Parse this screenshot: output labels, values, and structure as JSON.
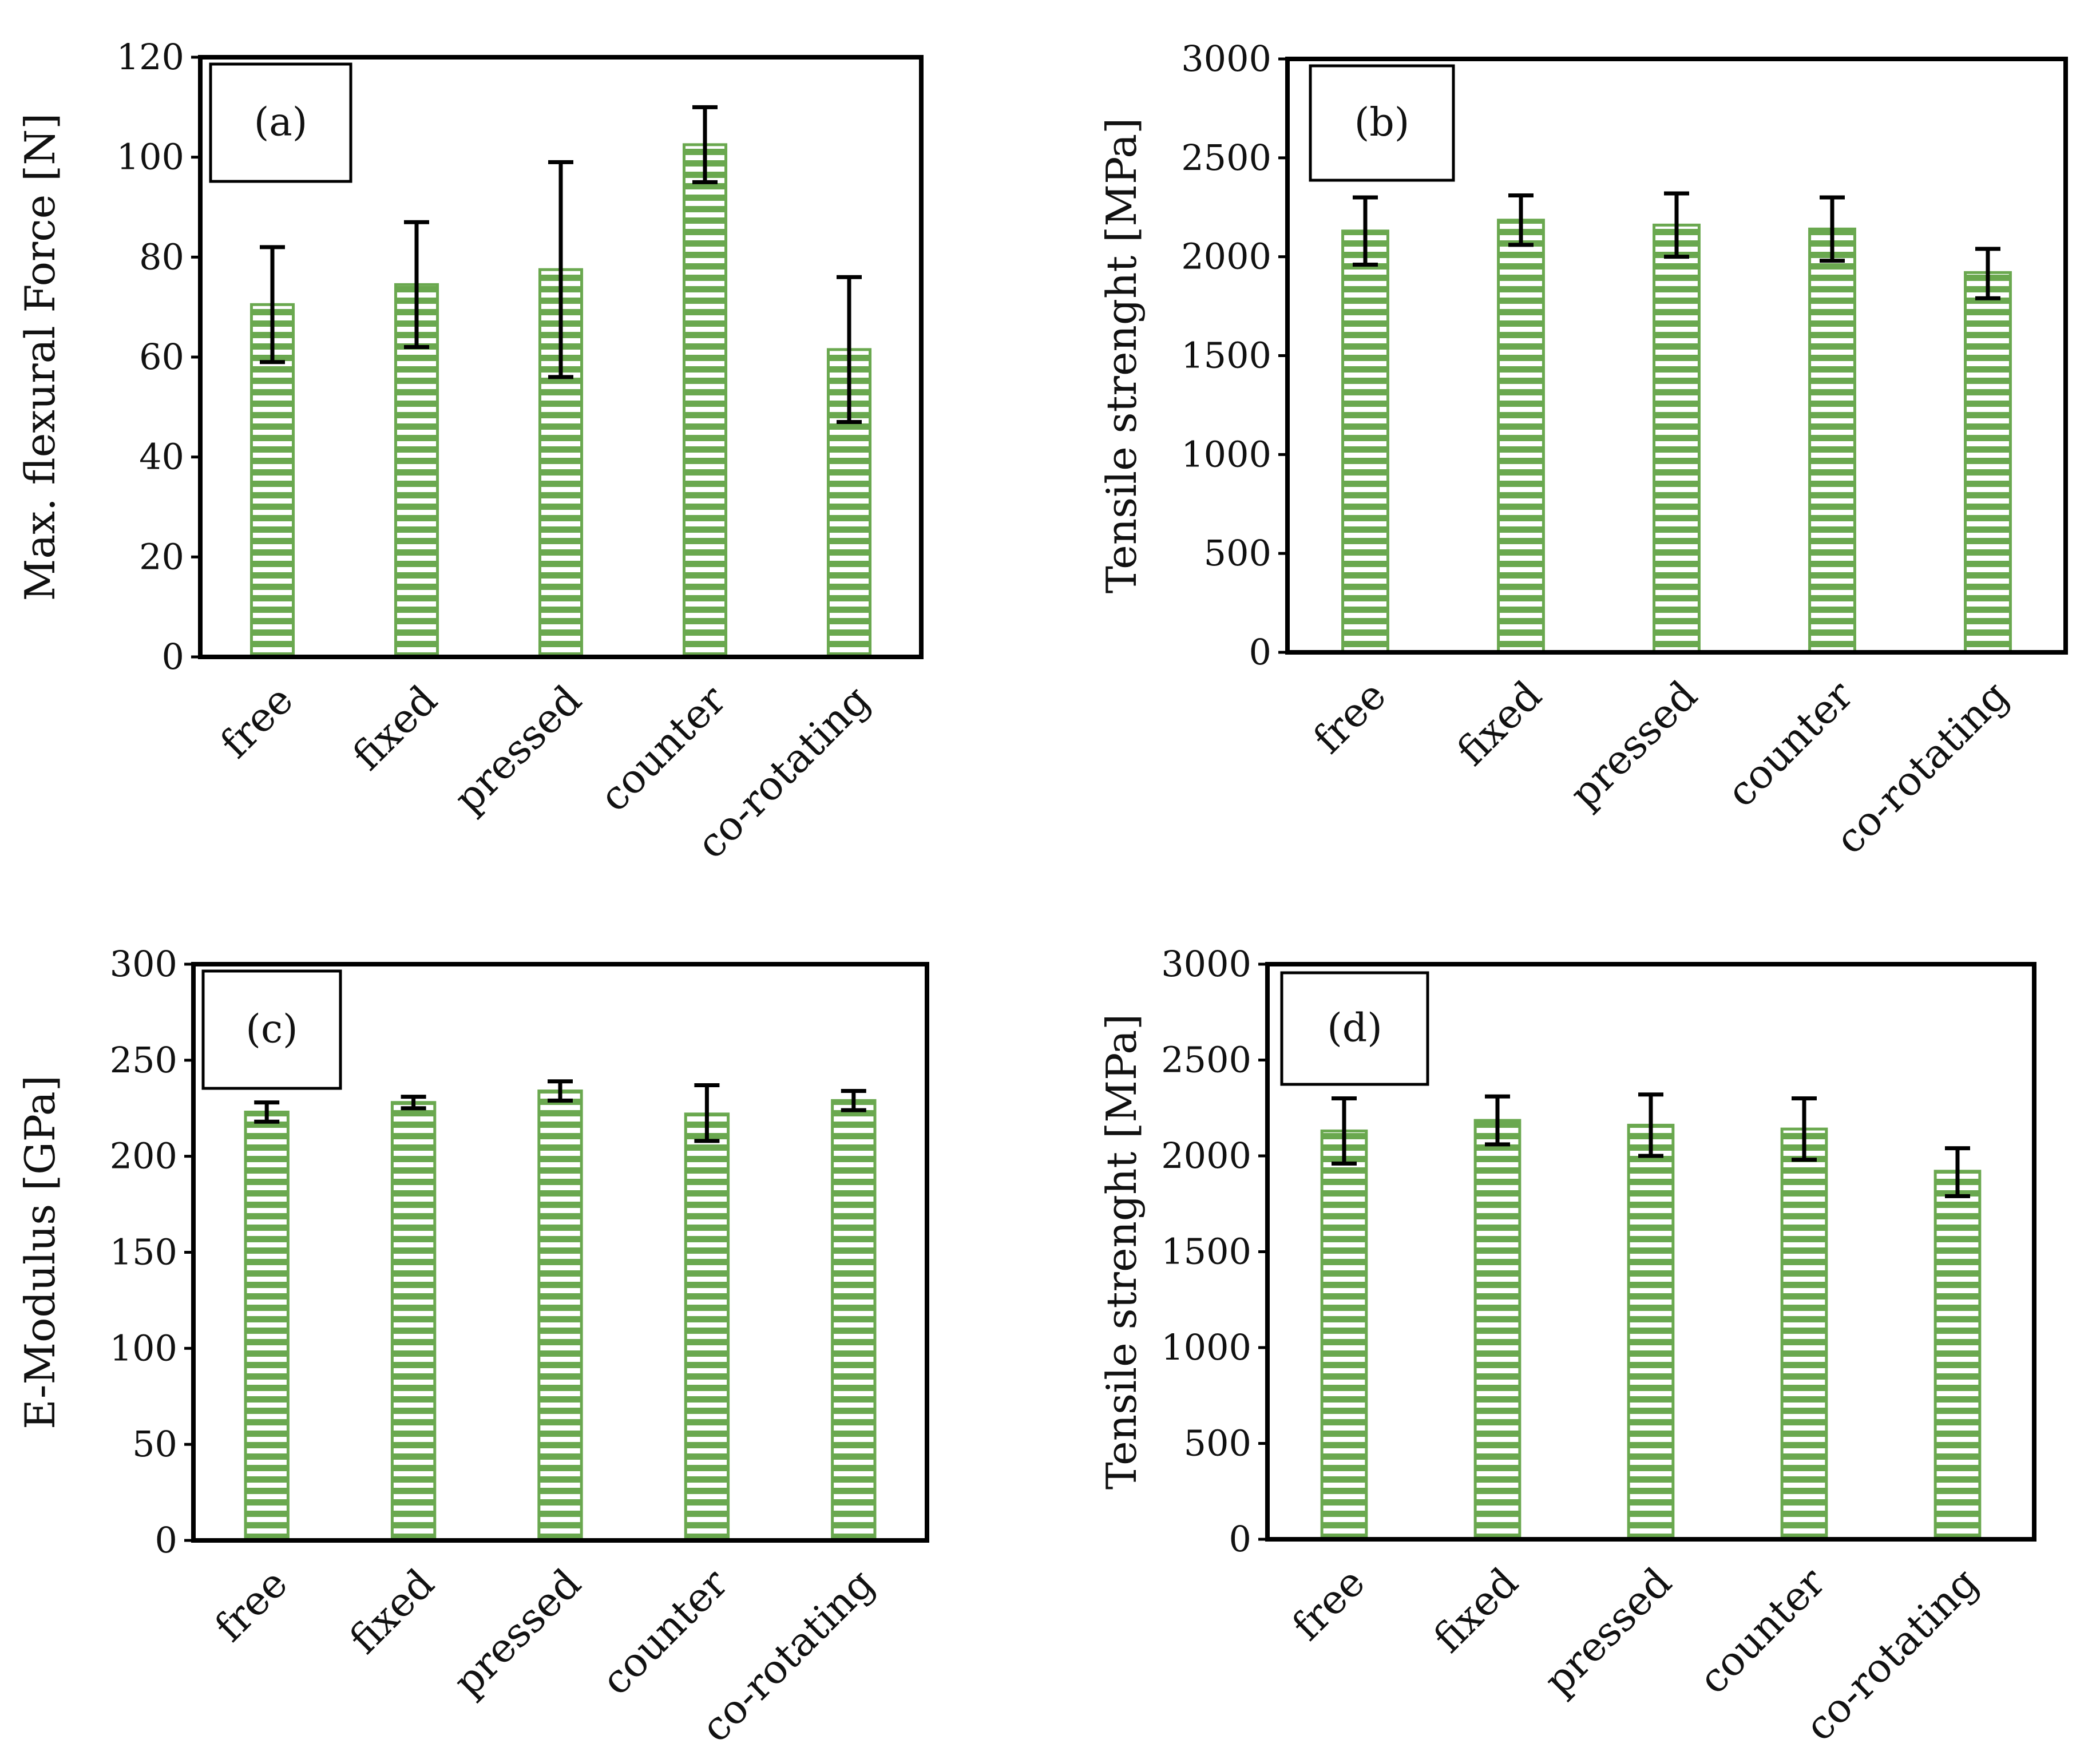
{
  "colors": {
    "bar_stripe": "#6aa84f",
    "bar_gap": "#ffffff",
    "axis": "#000000"
  },
  "chart_data": [
    {
      "id": "a",
      "type": "bar",
      "panel_label": "(a)",
      "title": "",
      "xlabel": "",
      "ylabel": "Max. flexural Force [N]",
      "ylim": [
        0,
        120
      ],
      "yticks": [
        "0",
        "20",
        "40",
        "60",
        "80",
        "100",
        "120"
      ],
      "categories": [
        "free",
        "fixed",
        "pressed",
        "counter",
        "co-rotating"
      ],
      "values": [
        70.5,
        74.5,
        77.5,
        102.5,
        61.5
      ],
      "err_low": [
        59,
        62,
        56,
        95,
        47
      ],
      "err_high": [
        82,
        87,
        99,
        110,
        76
      ]
    },
    {
      "id": "b",
      "type": "bar",
      "panel_label": "(b)",
      "title": "",
      "xlabel": "",
      "ylabel": "Tensile strenght [MPa]",
      "ylim": [
        0,
        3000
      ],
      "yticks": [
        "0",
        "500",
        "1000",
        "1500",
        "2000",
        "2500",
        "3000"
      ],
      "categories": [
        "free",
        "fixed",
        "pressed",
        "counter",
        "co-rotating"
      ],
      "values": [
        2130,
        2185,
        2160,
        2140,
        1920
      ],
      "err_low": [
        1960,
        2060,
        2000,
        1980,
        1790
      ],
      "err_high": [
        2300,
        2310,
        2320,
        2300,
        2040
      ]
    },
    {
      "id": "c",
      "type": "bar",
      "panel_label": "(c)",
      "title": "",
      "xlabel": "",
      "ylabel": "E-Modulus [GPa]",
      "ylim": [
        0,
        300
      ],
      "yticks": [
        "0",
        "50",
        "100",
        "150",
        "200",
        "250",
        "300"
      ],
      "categories": [
        "free",
        "fixed",
        "pressed",
        "counter",
        "co-rotating"
      ],
      "values": [
        223,
        228,
        234,
        222,
        229
      ],
      "err_low": [
        218,
        225,
        229,
        208,
        224
      ],
      "err_high": [
        228,
        231,
        239,
        237,
        234
      ]
    },
    {
      "id": "d",
      "type": "bar",
      "panel_label": "(d)",
      "title": "",
      "xlabel": "",
      "ylabel": "Tensile strenght [MPa]",
      "ylim": [
        0,
        3000
      ],
      "yticks": [
        "0",
        "500",
        "1000",
        "1500",
        "2000",
        "2500",
        "3000"
      ],
      "categories": [
        "free",
        "fixed",
        "pressed",
        "counter",
        "co-rotating"
      ],
      "values": [
        2130,
        2185,
        2160,
        2140,
        1920
      ],
      "err_low": [
        1960,
        2060,
        2000,
        1980,
        1790
      ],
      "err_high": [
        2300,
        2310,
        2320,
        2300,
        2040
      ]
    }
  ]
}
